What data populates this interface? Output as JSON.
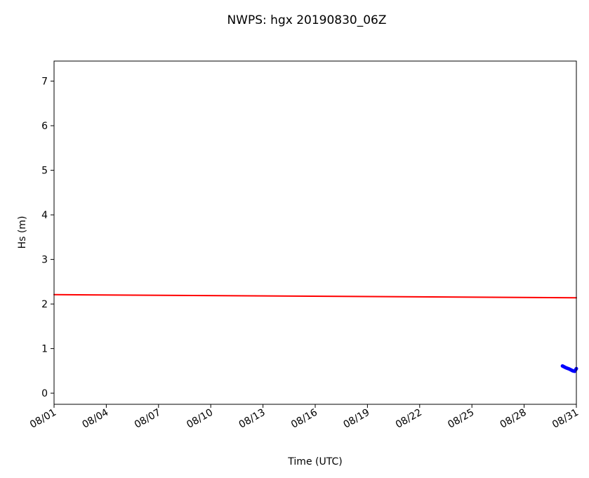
{
  "chart_data": {
    "type": "line",
    "title": "NWPS: hgx 20190830_06Z",
    "xlabel": "Time (UTC)",
    "ylabel": "Hs (m)",
    "xlim": [
      1,
      31
    ],
    "ylim": [
      -0.25,
      7.45
    ],
    "xticks": [
      {
        "value": 1,
        "label": "08/01"
      },
      {
        "value": 4,
        "label": "08/04"
      },
      {
        "value": 7,
        "label": "08/07"
      },
      {
        "value": 10,
        "label": "08/10"
      },
      {
        "value": 13,
        "label": "08/13"
      },
      {
        "value": 16,
        "label": "08/16"
      },
      {
        "value": 19,
        "label": "08/19"
      },
      {
        "value": 22,
        "label": "08/22"
      },
      {
        "value": 25,
        "label": "08/25"
      },
      {
        "value": 28,
        "label": "08/28"
      },
      {
        "value": 31,
        "label": "08/31"
      }
    ],
    "yticks": [
      0,
      1,
      2,
      3,
      4,
      5,
      6,
      7
    ],
    "series": [
      {
        "color": "#ff0000",
        "x": [
          1,
          31
        ],
        "values": [
          2.21,
          2.14
        ]
      },
      {
        "color": "#0000ff",
        "x": [
          30.2,
          30.4,
          30.6,
          30.8,
          30.9,
          31
        ],
        "values": [
          0.61,
          0.57,
          0.54,
          0.5,
          0.49,
          0.55
        ]
      }
    ]
  }
}
